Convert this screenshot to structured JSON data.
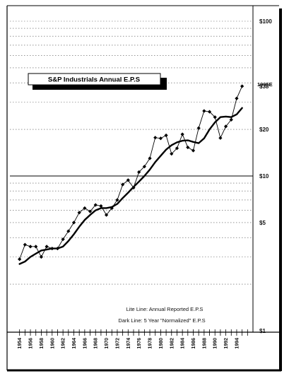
{
  "chart_data": {
    "type": "line",
    "title": "S&P Industrials Annual E.P.S",
    "y_scale": "log",
    "ylim": [
      1,
      100
    ],
    "y_tick_labels": [
      {
        "value": 1,
        "label": "$1"
      },
      {
        "value": 5,
        "label": "$5"
      },
      {
        "value": 10,
        "label": "$10"
      },
      {
        "value": 20,
        "label": "$20"
      },
      {
        "value": 38,
        "label": "$38"
      },
      {
        "value": 100,
        "label": "$100"
      }
    ],
    "x_range": [
      1953,
      1997
    ],
    "x_tick_labels": [
      "1954",
      "1956",
      "1958",
      "1960",
      "1962",
      "1964",
      "1966",
      "1968",
      "1970",
      "1972",
      "1974",
      "1976",
      "1978",
      "1980",
      "1982",
      "1984",
      "1986",
      "1988",
      "1990",
      "1992",
      "1994"
    ],
    "grid": "dotted-horizontal",
    "legend_notes": [
      "Lite Line: Annual Reported E.P.S",
      "Dark Line: 5 Year \"Normalized\" E.P.S"
    ],
    "annotations": [
      {
        "text": "1995E",
        "x": 1995,
        "y": 38
      }
    ],
    "series": [
      {
        "style": "thin-with-markers",
        "x": [
          1954,
          1955,
          1956,
          1957,
          1958,
          1959,
          1960,
          1961,
          1962,
          1963,
          1964,
          1965,
          1966,
          1967,
          1968,
          1969,
          1970,
          1971,
          1972,
          1973,
          1974,
          1975,
          1976,
          1977,
          1978,
          1979,
          1980,
          1981,
          1982,
          1983,
          1984,
          1985,
          1986,
          1987,
          1988,
          1989,
          1990,
          1991,
          1992,
          1993,
          1994,
          1995
        ],
        "values": [
          2.9,
          3.6,
          3.5,
          3.5,
          3.0,
          3.5,
          3.4,
          3.4,
          3.9,
          4.4,
          5.0,
          5.8,
          6.2,
          5.9,
          6.5,
          6.4,
          5.6,
          6.2,
          7.0,
          8.8,
          9.4,
          8.4,
          10.6,
          11.5,
          13.0,
          17.7,
          17.5,
          18.3,
          13.9,
          15.1,
          18.6,
          15.3,
          14.6,
          20.4,
          26.3,
          26.0,
          24.0,
          17.6,
          20.9,
          23.1,
          31.7,
          38.0
        ]
      },
      {
        "style": "thick",
        "x": [
          1954,
          1955,
          1956,
          1957,
          1958,
          1959,
          1960,
          1961,
          1962,
          1963,
          1964,
          1965,
          1966,
          1967,
          1968,
          1969,
          1970,
          1971,
          1972,
          1973,
          1974,
          1975,
          1976,
          1977,
          1978,
          1979,
          1980,
          1981,
          1982,
          1983,
          1984,
          1985,
          1986,
          1987,
          1988,
          1989,
          1990,
          1991,
          1992,
          1993,
          1994,
          1995
        ],
        "values": [
          2.7,
          2.8,
          3.0,
          3.15,
          3.3,
          3.35,
          3.4,
          3.4,
          3.5,
          3.8,
          4.2,
          4.7,
          5.2,
          5.6,
          6.0,
          6.2,
          6.2,
          6.3,
          6.6,
          7.2,
          7.8,
          8.5,
          9.2,
          10.0,
          11.0,
          12.3,
          13.5,
          14.8,
          15.8,
          16.5,
          16.9,
          17.0,
          16.6,
          16.3,
          17.5,
          20.0,
          22.2,
          24.0,
          24.2,
          24.0,
          25.0,
          27.5
        ]
      }
    ]
  }
}
